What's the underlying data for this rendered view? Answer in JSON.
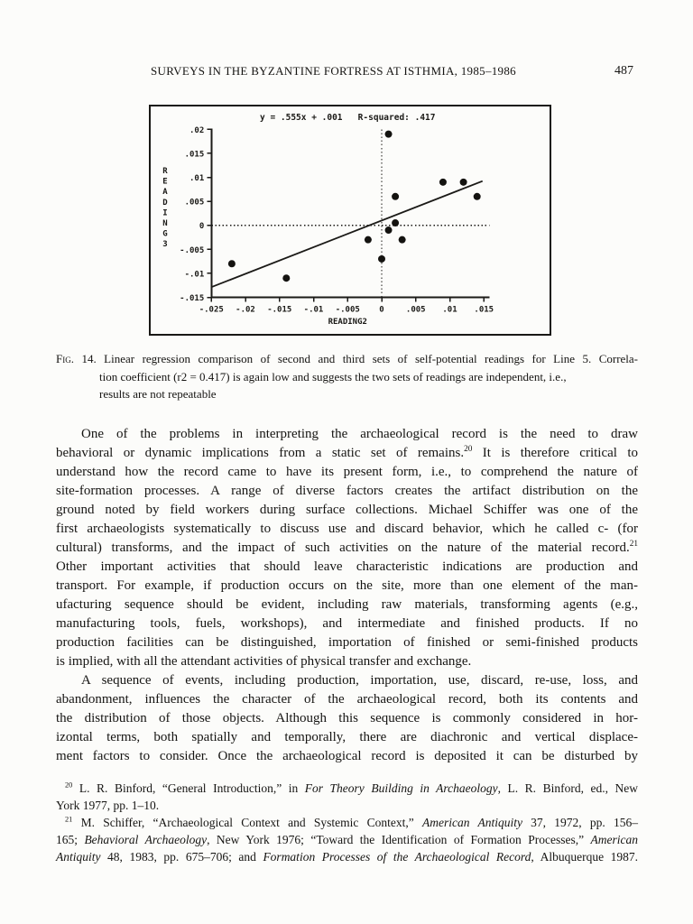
{
  "header": {
    "title": "SURVEYS IN THE BYZANTINE FORTRESS AT ISTHMIA, 1985–1986",
    "page_number": "487"
  },
  "chart_data": {
    "type": "scatter",
    "title": "y = .555x + .001   R-squared: .417",
    "xlabel": "READING2",
    "ylabel": "READING3",
    "xlim": [
      -0.025,
      0.015
    ],
    "ylim": [
      -0.015,
      0.02
    ],
    "grid": false,
    "zero_reference_lines": "dotted horizontal and vertical lines at 0",
    "xticks": [
      -0.025,
      -0.02,
      -0.015,
      -0.01,
      -0.005,
      0,
      0.005,
      0.01,
      0.015
    ],
    "xtick_labels": [
      "-.025",
      "-.02",
      "-.015",
      "-.01",
      "-.005",
      "0",
      ".005",
      ".01",
      ".015"
    ],
    "yticks": [
      0.02,
      0.015,
      0.01,
      0.005,
      0,
      -0.005,
      -0.01,
      -0.015
    ],
    "ytick_labels": [
      ".02",
      ".015",
      ".01",
      ".005",
      "0",
      "-.005",
      "-.01",
      "-.015"
    ],
    "points": [
      [
        -0.022,
        -0.008
      ],
      [
        -0.014,
        -0.011
      ],
      [
        -0.002,
        -0.003
      ],
      [
        0.0,
        -0.007
      ],
      [
        0.001,
        -0.001
      ],
      [
        0.002,
        0.0005
      ],
      [
        0.003,
        -0.003
      ],
      [
        0.001,
        0.019
      ],
      [
        0.002,
        0.006
      ],
      [
        0.009,
        0.009
      ],
      [
        0.012,
        0.009
      ],
      [
        0.014,
        0.006
      ]
    ],
    "regression": {
      "slope": 0.555,
      "intercept": 0.001,
      "x_start": -0.025,
      "x_end": 0.0148
    },
    "ink_color": "#1b1a17"
  },
  "figure": {
    "caption_lines": [
      {
        "j": true,
        "seg": [
          {
            "t": "Fig.",
            "sc": true
          },
          {
            "t": " 14.  Linear regression comparison of second and third sets of self-potential readings for Line 5. Correla-"
          }
        ]
      },
      {
        "j": false,
        "seg": [
          {
            "t": "tion coefficient (r2 = 0.417) is again low and suggests the two sets of readings are independent, i.e.,"
          }
        ]
      },
      {
        "j": false,
        "seg": [
          {
            "t": "results are not repeatable"
          }
        ]
      }
    ]
  },
  "body": {
    "paragraphs": [
      {
        "lines": [
          {
            "j": true,
            "indent": true,
            "seg": [
              {
                "t": "One of the problems in interpreting the archaeological record is the need to draw"
              }
            ]
          },
          {
            "j": true,
            "seg": [
              {
                "t": "behavioral or dynamic implications from a static set of remains."
              },
              {
                "t": "20",
                "sup": true
              },
              {
                "t": " It is therefore critical to"
              }
            ]
          },
          {
            "j": true,
            "seg": [
              {
                "t": "understand how the record came to have its present form, i.e., to comprehend the nature of"
              }
            ]
          },
          {
            "j": true,
            "seg": [
              {
                "t": "site-formation processes. A range of diverse factors creates the artifact distribution on the"
              }
            ]
          },
          {
            "j": true,
            "seg": [
              {
                "t": "ground noted by field workers during surface collections. Michael Schiffer was one of the"
              }
            ]
          },
          {
            "j": true,
            "seg": [
              {
                "t": "first archaeologists systematically to discuss use and discard behavior, which he called c- (for"
              }
            ]
          },
          {
            "j": true,
            "seg": [
              {
                "t": "cultural) transforms, and the impact of such activities on the nature of the material record."
              },
              {
                "t": "21",
                "sup": true
              }
            ]
          },
          {
            "j": true,
            "seg": [
              {
                "t": "Other important activities that should leave characteristic indications are production and"
              }
            ]
          },
          {
            "j": true,
            "seg": [
              {
                "t": "transport. For example, if production occurs on the site, more than one element of the man-"
              }
            ]
          },
          {
            "j": true,
            "seg": [
              {
                "t": "ufacturing sequence should be evident, including raw materials, transforming agents (e.g.,"
              }
            ]
          },
          {
            "j": true,
            "seg": [
              {
                "t": "manufacturing tools, fuels, workshops), and intermediate and finished products. If no"
              }
            ]
          },
          {
            "j": true,
            "seg": [
              {
                "t": "production facilities can be distinguished, importation of finished or semi-finished products"
              }
            ]
          },
          {
            "j": false,
            "seg": [
              {
                "t": "is implied, with all the attendant activities of physical transfer and exchange."
              }
            ]
          }
        ]
      },
      {
        "lines": [
          {
            "j": true,
            "indent": true,
            "seg": [
              {
                "t": "A sequence of events, including production, importation, use, discard, re-use, loss, and"
              }
            ]
          },
          {
            "j": true,
            "seg": [
              {
                "t": "abandonment, influences the character of the archaeological record, both its contents and"
              }
            ]
          },
          {
            "j": true,
            "seg": [
              {
                "t": "the distribution of those objects. Although this sequence is commonly considered in hor-"
              }
            ]
          },
          {
            "j": true,
            "seg": [
              {
                "t": "izontal terms, both spatially and temporally, there are diachronic and vertical displace-"
              }
            ]
          },
          {
            "j": true,
            "seg": [
              {
                "t": "ment factors to consider. Once the archaeological record is deposited it can be disturbed by"
              }
            ]
          }
        ]
      }
    ]
  },
  "footnotes": [
    {
      "lines": [
        {
          "j": true,
          "seg": [
            {
              "t": "20",
              "sup": true
            },
            {
              "t": " L. R. Binford, “General Introduction,” in "
            },
            {
              "t": "For Theory Building in Archaeology",
              "italic": true
            },
            {
              "t": ", L. R. Binford, ed., New"
            }
          ]
        },
        {
          "j": false,
          "seg": [
            {
              "t": "York 1977, pp. 1–10."
            }
          ]
        }
      ]
    },
    {
      "lines": [
        {
          "j": true,
          "seg": [
            {
              "t": "21",
              "sup": true
            },
            {
              "t": " M. Schiffer, “Archaeological Context and Systemic Context,” "
            },
            {
              "t": "American Antiquity",
              "italic": true
            },
            {
              "t": " 37, 1972, pp. 156–"
            }
          ]
        },
        {
          "j": true,
          "seg": [
            {
              "t": "165; "
            },
            {
              "t": "Behavioral Archaeology",
              "italic": true
            },
            {
              "t": ", New York 1976; “Toward the Identification of Formation Processes,” "
            },
            {
              "t": "American",
              "italic": true
            }
          ]
        },
        {
          "j": true,
          "seg": [
            {
              "t": "Antiquity",
              "italic": true
            },
            {
              "t": " 48, 1983, pp. 675–706; and "
            },
            {
              "t": "Formation Processes of the Archaeological Record",
              "italic": true
            },
            {
              "t": ", Albuquerque 1987."
            }
          ]
        }
      ]
    }
  ]
}
